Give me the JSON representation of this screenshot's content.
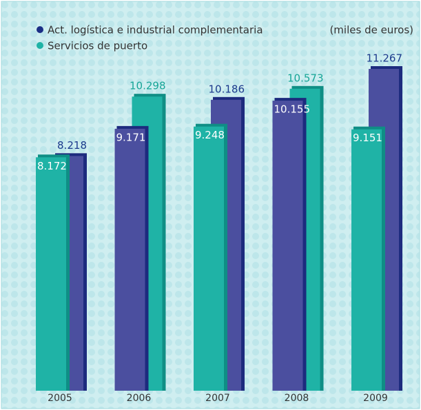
{
  "chart_data": {
    "type": "bar",
    "unit_note": "(miles de euros)",
    "categories": [
      "2005",
      "2006",
      "2007",
      "2008",
      "2009"
    ],
    "series": [
      {
        "name": "Act. logística e industrial complementaria",
        "color": "#4b4f9f",
        "values": [
          8218,
          9171,
          10186,
          10155,
          11267
        ],
        "value_labels": [
          "8.218",
          "9.171",
          "10.186",
          "10.155",
          "11.267"
        ]
      },
      {
        "name": "Servicios de puerto",
        "color": "#1fb3a6",
        "values": [
          8172,
          10298,
          9248,
          10573,
          9151
        ],
        "value_labels": [
          "8.172",
          "10.298",
          "9.248",
          "10.573",
          "9.151"
        ]
      }
    ]
  }
}
